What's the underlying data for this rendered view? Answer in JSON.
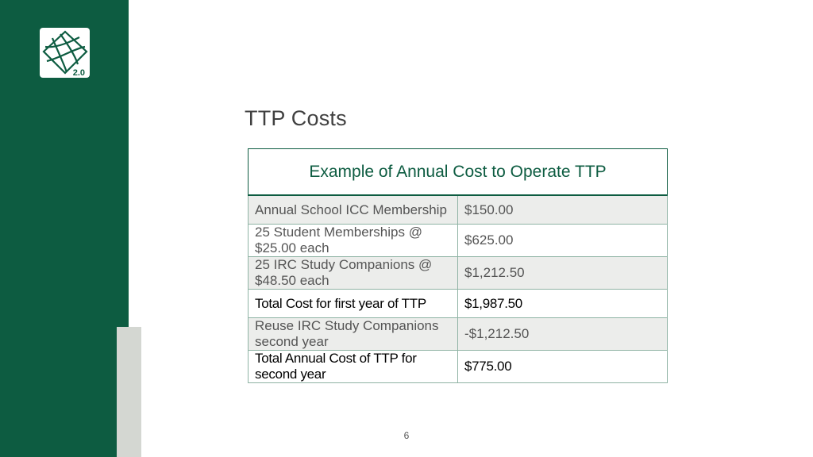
{
  "logo": {
    "badge": "2.0"
  },
  "slide": {
    "title": "TTP Costs",
    "page_number": "6"
  },
  "table": {
    "header": "Example of Annual Cost to Operate TTP",
    "rows": [
      {
        "label": "Annual School ICC Membership",
        "amount": "$150.00",
        "emphasis": false
      },
      {
        "label": "25 Student Memberships @ $25.00 each",
        "amount": "$625.00",
        "emphasis": false
      },
      {
        "label": "25 IRC Study Companions @ $48.50 each",
        "amount": "$1,212.50",
        "emphasis": false
      },
      {
        "label": "Total Cost for first year of TTP",
        "amount": "$1,987.50",
        "emphasis": true
      },
      {
        "label": "Reuse IRC Study Companions second year",
        "amount": "-$1,212.50",
        "emphasis": false
      },
      {
        "label": "Total Annual Cost of TTP for second year",
        "amount": "$775.00",
        "emphasis": true
      }
    ]
  },
  "colors": {
    "brand_green": "#0d5c41",
    "accent_gray": "#d4d7d2",
    "row_shade": "#ecedeb"
  }
}
